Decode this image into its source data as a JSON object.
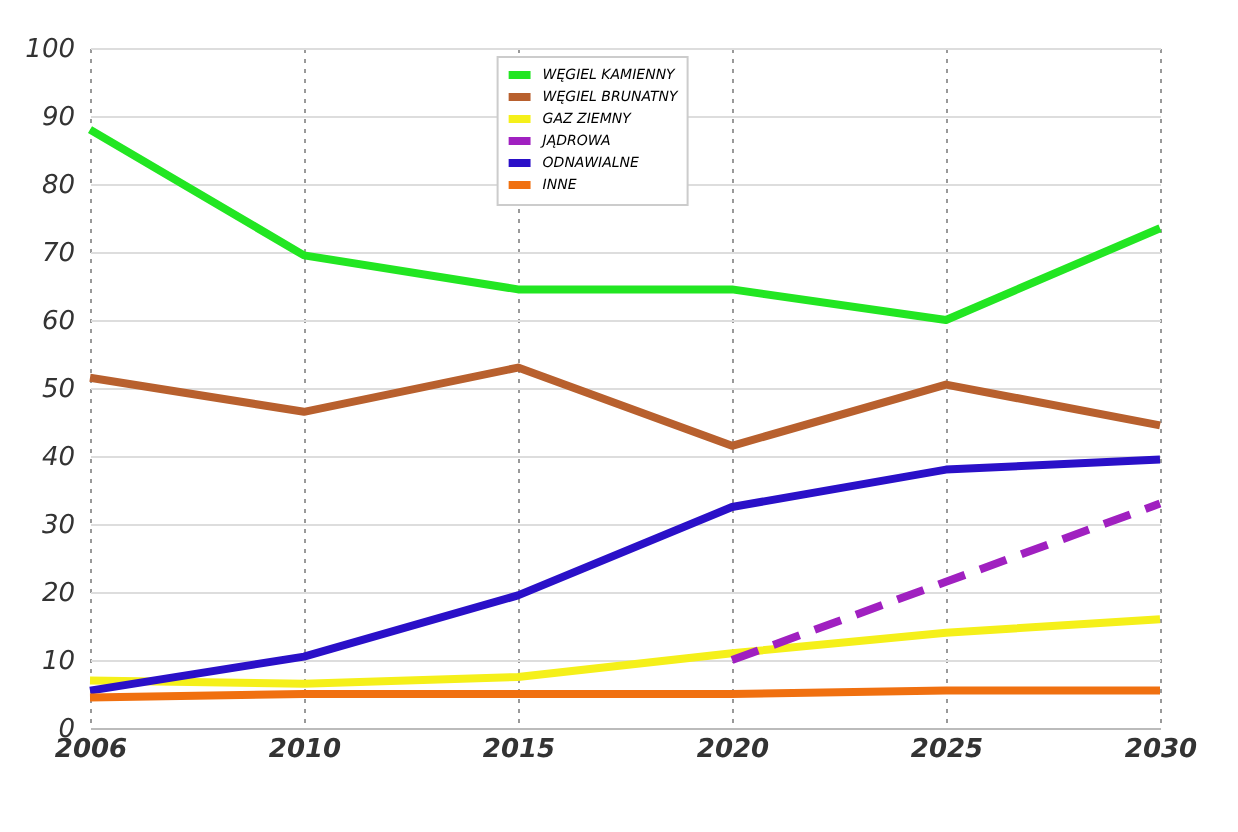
{
  "chart_data": {
    "type": "line",
    "categories": [
      "2006",
      "2010",
      "2015",
      "2020",
      "2025",
      "2030"
    ],
    "series": [
      {
        "name": "WĘGIEL KAMIENNY",
        "color": "#22e622",
        "values": [
          88,
          69.5,
          64.5,
          64.5,
          60,
          73.5
        ]
      },
      {
        "name": "WĘGIEL BRUNATNY",
        "color": "#b8602e",
        "values": [
          51.5,
          46.5,
          53,
          41.5,
          50.5,
          44.5
        ]
      },
      {
        "name": "GAZ ZIEMNY",
        "color": "#f5f01a",
        "values": [
          7,
          6.5,
          7.5,
          11,
          14,
          16
        ]
      },
      {
        "name": "JĄDROWA",
        "color": "#a020c0",
        "line_style": "dashed",
        "values": [
          null,
          null,
          null,
          10,
          21.5,
          33
        ]
      },
      {
        "name": "ODNAWIALNE",
        "color": "#2a10c8",
        "values": [
          5.5,
          10.5,
          19.5,
          32.5,
          38,
          39.5
        ]
      },
      {
        "name": "INNE",
        "color": "#f07010",
        "values": [
          4.5,
          5,
          5,
          5,
          5.5,
          5.5
        ]
      }
    ],
    "ylim": [
      0,
      100
    ],
    "yticks": [
      0,
      10,
      20,
      30,
      40,
      50,
      60,
      70,
      80,
      90,
      100
    ],
    "grid": true,
    "legend": "top",
    "line_style": "solid",
    "marker": "none"
  }
}
